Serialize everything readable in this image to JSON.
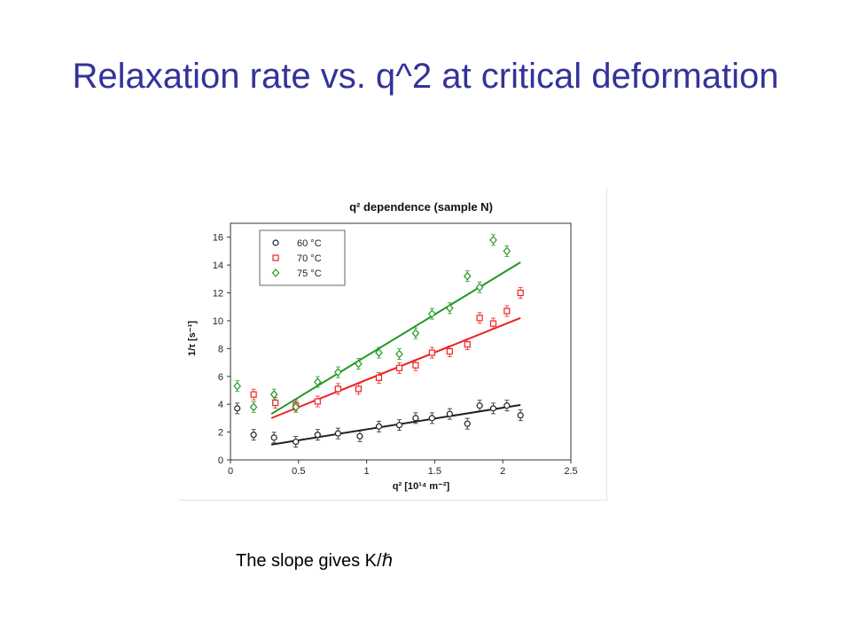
{
  "slide": {
    "title": "Relaxation rate vs. q^2 at critical deformation",
    "caption": "The slope gives K/ℏ"
  },
  "chart_data": {
    "type": "scatter",
    "title": "q² dependence (sample N)",
    "xlabel": "q² [10¹⁴ m⁻²]",
    "ylabel": "1/τ [s⁻¹]",
    "xlim": [
      0,
      2.5
    ],
    "ylim": [
      0,
      17
    ],
    "xticks": [
      "0",
      "0.5",
      "1",
      "1.5",
      "2",
      "2.5"
    ],
    "yticks": [
      "0",
      "2",
      "4",
      "6",
      "8",
      "10",
      "12",
      "14",
      "16"
    ],
    "grid": false,
    "legend_position": "top-left",
    "series": [
      {
        "name": "60 °C",
        "color": "#222222",
        "marker": "circle",
        "x": [
          0.05,
          0.17,
          0.32,
          0.48,
          0.64,
          0.79,
          0.95,
          1.09,
          1.24,
          1.36,
          1.48,
          1.61,
          1.74,
          1.83,
          1.93,
          2.03,
          2.13
        ],
        "y": [
          3.7,
          1.8,
          1.6,
          1.3,
          1.8,
          1.9,
          1.7,
          2.4,
          2.5,
          3.0,
          3.0,
          3.3,
          2.6,
          3.9,
          3.7,
          3.9,
          3.2
        ],
        "fit": [
          [
            0.3,
            1.1
          ],
          [
            2.13,
            3.95
          ]
        ]
      },
      {
        "name": "70 °C",
        "color": "#ee2222",
        "marker": "square",
        "x": [
          0.17,
          0.33,
          0.48,
          0.64,
          0.79,
          0.94,
          1.09,
          1.24,
          1.36,
          1.48,
          1.61,
          1.74,
          1.83,
          1.93,
          2.03,
          2.13
        ],
        "y": [
          4.7,
          4.1,
          3.9,
          4.2,
          5.1,
          5.1,
          5.9,
          6.6,
          6.8,
          7.7,
          7.8,
          8.3,
          10.2,
          9.8,
          10.7,
          12.0
        ],
        "fit": [
          [
            0.3,
            3.0
          ],
          [
            2.13,
            10.2
          ]
        ]
      },
      {
        "name": "75 °C",
        "color": "#229922",
        "marker": "diamond",
        "x": [
          0.05,
          0.17,
          0.32,
          0.48,
          0.64,
          0.79,
          0.94,
          1.09,
          1.24,
          1.36,
          1.48,
          1.61,
          1.74,
          1.83,
          1.93,
          2.03
        ],
        "y": [
          5.3,
          3.8,
          4.7,
          3.8,
          5.6,
          6.3,
          6.9,
          7.7,
          7.6,
          9.1,
          10.5,
          10.9,
          13.2,
          12.4,
          15.8,
          15.0
        ],
        "fit": [
          [
            0.3,
            3.3
          ],
          [
            2.13,
            14.2
          ]
        ]
      }
    ]
  }
}
